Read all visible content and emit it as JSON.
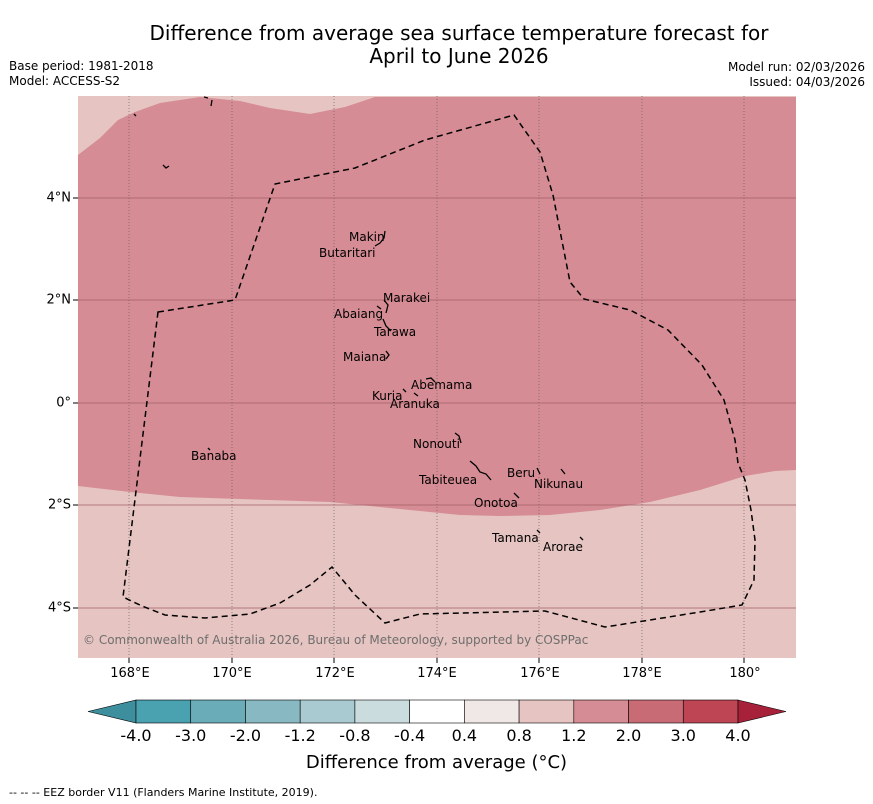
{
  "title": {
    "line1": "Difference from average sea surface temperature forecast for",
    "line2": "April to June 2026"
  },
  "meta_left": {
    "base_period": "Base period: 1981-2018",
    "model": "Model: ACCESS-S2"
  },
  "meta_right": {
    "model_run": "Model run: 02/03/2026",
    "issued": "Issued: 04/03/2026"
  },
  "map": {
    "copyright": "© Commonwealth of Australia 2026, Bureau of Meteorology, supported by COSPPac",
    "x_ticks": [
      "168°E",
      "170°E",
      "172°E",
      "174°E",
      "176°E",
      "178°E",
      "180°"
    ],
    "y_ticks": [
      "4°N",
      "2°N",
      "0°",
      "2°S",
      "4°S"
    ],
    "islands": [
      "Makin",
      "Butaritari",
      "Marakei",
      "Abaiang",
      "Tarawa",
      "Maiana",
      "Abemama",
      "Kuria",
      "Aranuka",
      "Nonouti",
      "Banaba",
      "Beru",
      "Nikunau",
      "Tabiteuea",
      "Onotoa",
      "Tamana",
      "Arorae"
    ],
    "colors": {
      "warm_anomaly": "#d58c94",
      "mild_anomaly": "#e6c4c1",
      "eez_line": "#000000"
    }
  },
  "colorbar": {
    "labels": [
      "-4.0",
      "-3.0",
      "-2.0",
      "-1.2",
      "-0.8",
      "-0.4",
      "0.4",
      "0.8",
      "1.2",
      "2.0",
      "3.0",
      "4.0"
    ],
    "colors": [
      "#3e8f9e",
      "#4aa1b0",
      "#6aacb8",
      "#88b8c2",
      "#a9cad0",
      "#cbdcdf",
      "#ffffff",
      "#efe8e6",
      "#e6c4c1",
      "#d58c94",
      "#c86b75",
      "#bd4554",
      "#a8213b"
    ],
    "title": "Difference from average (°C)"
  },
  "footer": "--  --  -- EEZ border V11 (Flanders Marine Institute, 2019)."
}
